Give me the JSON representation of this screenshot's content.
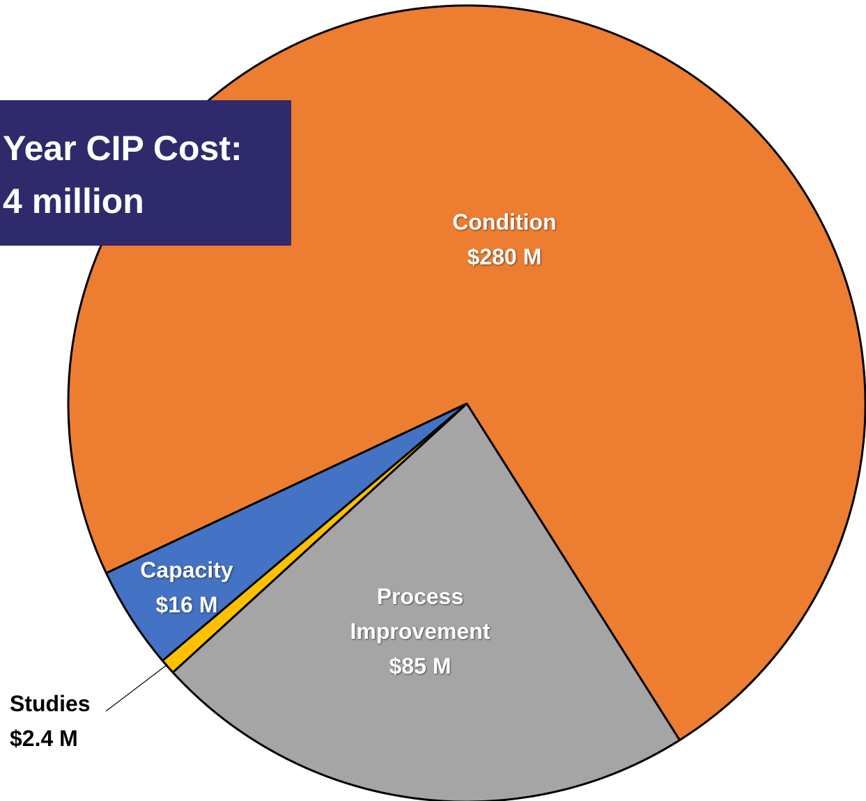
{
  "chart_data": {
    "type": "pie",
    "title": "Year CIP Cost:",
    "subtitle": "4 million",
    "categories": [
      "Condition",
      "Process Improvement",
      "Studies",
      "Capacity"
    ],
    "values": [
      280,
      85,
      2.4,
      16
    ],
    "value_labels": [
      "$280 M",
      "$85 M",
      "$2.4 M",
      "$16 M"
    ],
    "colors": [
      "#ED7D31",
      "#A5A5A5",
      "#FFC000",
      "#4472C4"
    ]
  }
}
